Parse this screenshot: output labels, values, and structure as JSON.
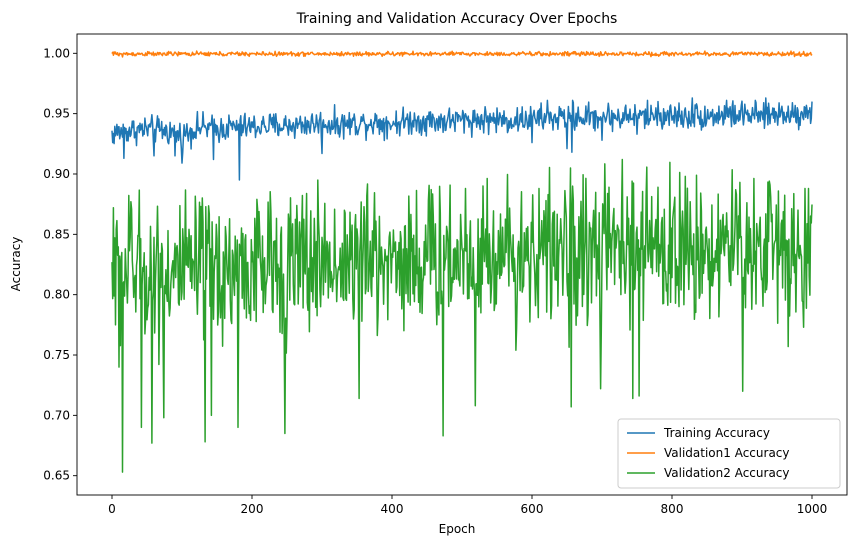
{
  "chart_data": {
    "type": "line",
    "title": "Training and Validation Accuracy Over Epochs",
    "xlabel": "Epoch",
    "ylabel": "Accuracy",
    "xlim": [
      -50,
      1050
    ],
    "ylim": [
      0.634,
      1.016
    ],
    "xticks": [
      0,
      200,
      400,
      600,
      800,
      1000
    ],
    "xtick_labels": [
      "0",
      "200",
      "400",
      "600",
      "800",
      "1000"
    ],
    "yticks": [
      0.65,
      0.7,
      0.75,
      0.8,
      0.85,
      0.9,
      0.95,
      1.0
    ],
    "ytick_labels": [
      "0.65",
      "0.70",
      "0.75",
      "0.80",
      "0.85",
      "0.90",
      "0.95",
      "1.00"
    ],
    "grid": false,
    "legend_position": "lower-right",
    "series": [
      {
        "name": "Training Accuracy",
        "color": "#1f77b4",
        "x": [
          0,
          25,
          50,
          75,
          100,
          125,
          150,
          175,
          200,
          225,
          250,
          275,
          300,
          325,
          350,
          375,
          400,
          425,
          450,
          475,
          500,
          525,
          550,
          575,
          600,
          625,
          650,
          675,
          700,
          725,
          750,
          775,
          800,
          825,
          850,
          875,
          900,
          925,
          950,
          975,
          1000
        ],
        "y": [
          0.934,
          0.936,
          0.937,
          0.936,
          0.932,
          0.939,
          0.937,
          0.939,
          0.939,
          0.94,
          0.94,
          0.941,
          0.942,
          0.941,
          0.942,
          0.943,
          0.942,
          0.944,
          0.944,
          0.944,
          0.945,
          0.945,
          0.945,
          0.944,
          0.946,
          0.946,
          0.947,
          0.947,
          0.948,
          0.947,
          0.948,
          0.948,
          0.948,
          0.948,
          0.948,
          0.949,
          0.949,
          0.948,
          0.95,
          0.95,
          0.951
        ],
        "noise": 0.0055,
        "dips": [
          [
            1,
            0.926
          ],
          [
            17,
            0.913
          ],
          [
            60,
            0.915
          ],
          [
            90,
            0.915
          ],
          [
            100,
            0.909
          ],
          [
            145,
            0.912
          ],
          [
            182,
            0.895
          ],
          [
            300,
            0.917
          ],
          [
            600,
            0.926
          ],
          [
            650,
            0.921
          ],
          [
            657,
            0.918
          ],
          [
            700,
            0.928
          ],
          [
            750,
            0.933
          ]
        ],
        "peaks": [
          [
            622,
            0.961
          ],
          [
            658,
            0.961
          ],
          [
            780,
            0.96
          ],
          [
            829,
            0.963
          ],
          [
            878,
            0.961
          ],
          [
            1000,
            0.96
          ]
        ]
      },
      {
        "name": "Validation1 Accuracy",
        "color": "#ff7f0e",
        "x": [
          0,
          250,
          500,
          750,
          1000
        ],
        "y": [
          0.9995,
          0.9995,
          0.9995,
          0.9995,
          0.9995
        ],
        "noise": 0.0009,
        "dips": [
          [
            15,
            0.997
          ],
          [
            60,
            0.998
          ],
          [
            160,
            0.998
          ],
          [
            600,
            0.998
          ]
        ],
        "peaks": [
          [
            5,
            1.001
          ],
          [
            350,
            1.001
          ],
          [
            900,
            1.001
          ]
        ]
      },
      {
        "name": "Validation2 Accuracy",
        "color": "#2ca02c",
        "x": [
          0,
          100,
          200,
          300,
          400,
          500,
          600,
          700,
          800,
          900,
          1000
        ],
        "y": [
          0.822,
          0.818,
          0.822,
          0.828,
          0.83,
          0.832,
          0.835,
          0.837,
          0.838,
          0.84,
          0.842
        ],
        "noise": 0.03,
        "dips": [
          [
            15,
            0.653
          ],
          [
            42,
            0.69
          ],
          [
            57,
            0.677
          ],
          [
            74,
            0.698
          ],
          [
            133,
            0.678
          ],
          [
            142,
            0.7
          ],
          [
            180,
            0.69
          ],
          [
            247,
            0.685
          ],
          [
            353,
            0.714
          ],
          [
            473,
            0.683
          ],
          [
            519,
            0.708
          ],
          [
            656,
            0.707
          ],
          [
            744,
            0.714
          ],
          [
            753,
            0.716
          ],
          [
            698,
            0.722
          ],
          [
            901,
            0.72
          ],
          [
            966,
            0.757
          ],
          [
            988,
            0.773
          ],
          [
            10,
            0.74
          ],
          [
            5,
            0.775
          ]
        ],
        "peaks": [
          [
            2,
            0.872
          ],
          [
            27,
            0.877
          ],
          [
            505,
            0.888
          ],
          [
            530,
            0.89
          ],
          [
            610,
            0.888
          ],
          [
            780,
            0.889
          ],
          [
            940,
            0.891
          ],
          [
            995,
            0.888
          ]
        ]
      }
    ]
  }
}
